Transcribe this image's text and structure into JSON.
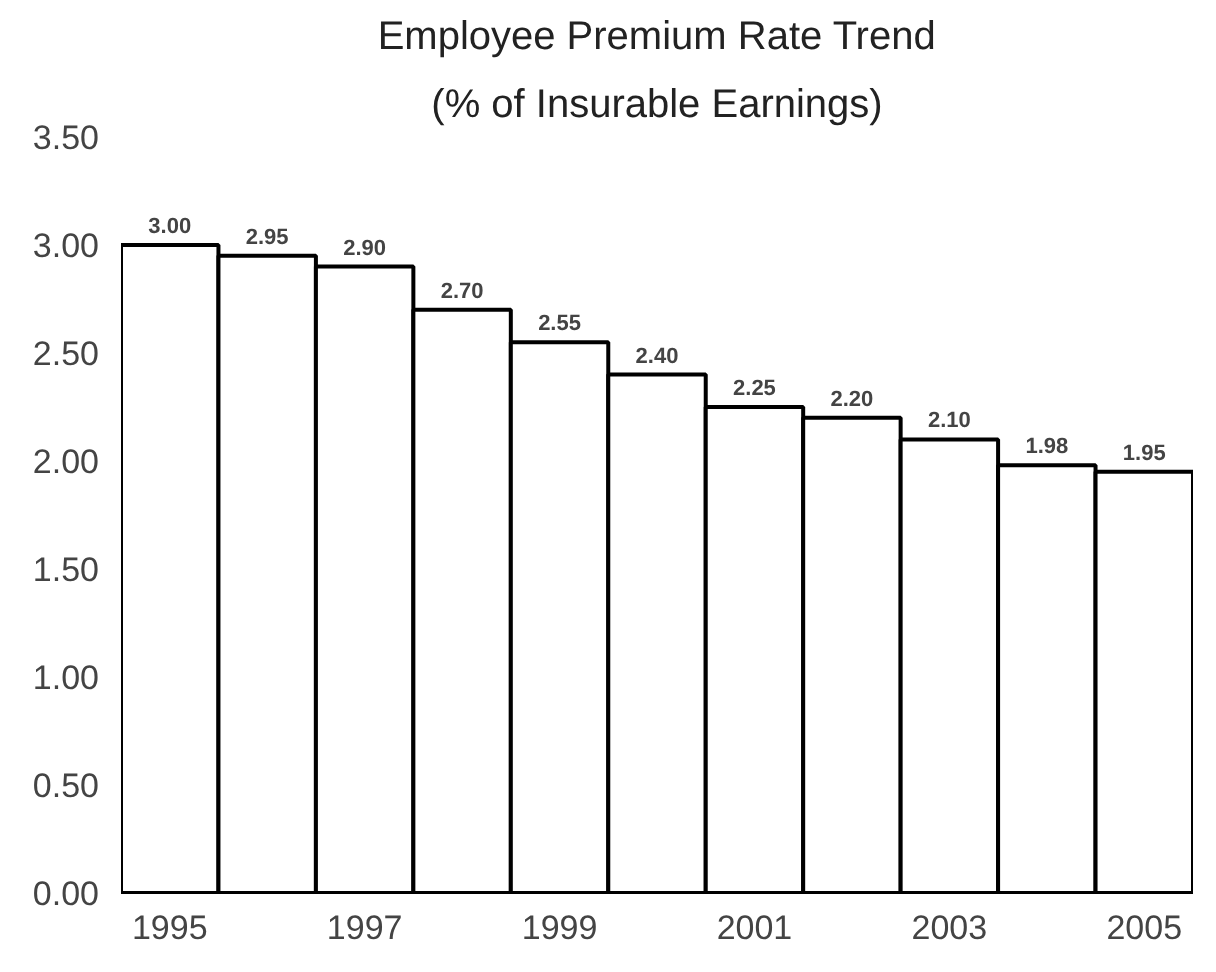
{
  "chart_data": {
    "type": "bar",
    "title": "Employee Premium Rate Trend",
    "subtitle": "(% of Insurable Earnings)",
    "categories": [
      "1995",
      null,
      "1997",
      null,
      "1999",
      null,
      "2001",
      null,
      "2003",
      null,
      "2005"
    ],
    "values": [
      3.0,
      2.95,
      2.9,
      2.7,
      2.55,
      2.4,
      2.25,
      2.2,
      2.1,
      1.98,
      1.95
    ],
    "value_labels": [
      "3.00",
      "2.95",
      "2.90",
      "2.70",
      "2.55",
      "2.40",
      "2.25",
      "2.20",
      "2.10",
      "1.98",
      "1.95"
    ],
    "color": "#ffffff",
    "ylim": [
      0,
      3.5
    ],
    "yticks": [
      {
        "value": 0,
        "label": "0.00"
      },
      {
        "value": 0.5,
        "label": "0.50"
      },
      {
        "value": 1,
        "label": "1.00"
      },
      {
        "value": 1.5,
        "label": "1.50"
      },
      {
        "value": 2,
        "label": "2.00"
      },
      {
        "value": 2.5,
        "label": "2.50"
      },
      {
        "value": 3,
        "label": "3.00"
      },
      {
        "value": 3.5,
        "label": "3.50"
      }
    ],
    "grid": false
  }
}
